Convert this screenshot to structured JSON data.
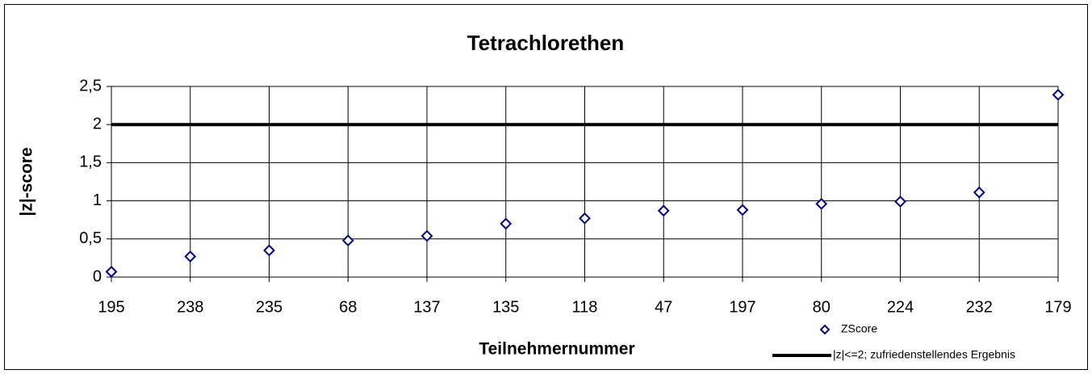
{
  "chart_data": {
    "type": "scatter",
    "title": "Tetrachlorethen",
    "x_label": "Teilnehmernummer",
    "y_label": "|z|-score",
    "categories": [
      "195",
      "238",
      "235",
      "68",
      "137",
      "135",
      "118",
      "47",
      "197",
      "80",
      "224",
      "232",
      "179"
    ],
    "series": [
      {
        "name": "ZScore",
        "type": "scatter",
        "color": "#000080",
        "values": [
          0.07,
          0.27,
          0.35,
          0.48,
          0.54,
          0.7,
          0.77,
          0.87,
          0.88,
          0.96,
          0.99,
          1.11,
          2.39
        ]
      },
      {
        "name": "|z|<=2; zufriedenstellendes Ergebnis",
        "type": "line",
        "color": "#000000",
        "values": [
          2,
          2,
          2,
          2,
          2,
          2,
          2,
          2,
          2,
          2,
          2,
          2,
          2
        ]
      }
    ],
    "ylim": [
      0,
      2.5
    ],
    "yticks": [
      0,
      {
        "value": 0.5,
        "label": "0,5"
      },
      1,
      {
        "value": 1.5,
        "label": "1,5"
      },
      2,
      {
        "value": 2.5,
        "label": "2,5"
      }
    ],
    "grid": true,
    "legend": "bottom-right"
  }
}
